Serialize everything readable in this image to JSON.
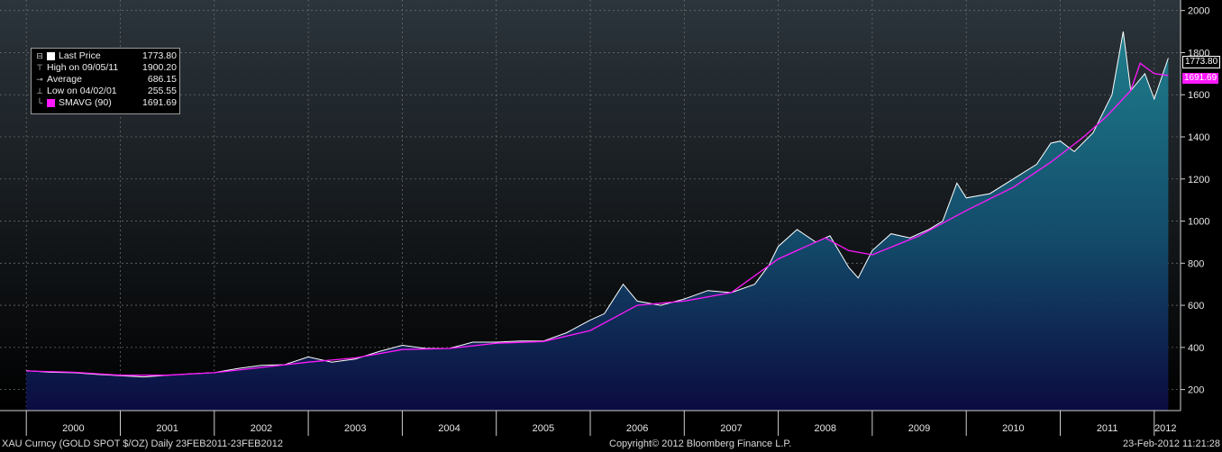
{
  "chart_data": {
    "type": "area",
    "xlabel": "",
    "ylabel": "",
    "ylim": [
      100,
      2050
    ],
    "yticks": [
      200,
      400,
      600,
      800,
      1000,
      1200,
      1400,
      1600,
      1800,
      2000
    ],
    "xticks": [
      "2000",
      "2001",
      "2002",
      "2003",
      "2004",
      "2005",
      "2006",
      "2007",
      "2008",
      "2009",
      "2010",
      "2011",
      "2012"
    ],
    "grid": true,
    "legend_position": "top-left",
    "series": [
      {
        "name": "Last Price",
        "color": "#ffffff",
        "x": [
          2000.0,
          2000.25,
          2000.5,
          2000.75,
          2001.0,
          2001.25,
          2001.5,
          2001.75,
          2002.0,
          2002.25,
          2002.5,
          2002.75,
          2003.0,
          2003.25,
          2003.5,
          2003.75,
          2004.0,
          2004.25,
          2004.5,
          2004.75,
          2005.0,
          2005.25,
          2005.5,
          2005.75,
          2006.0,
          2006.15,
          2006.35,
          2006.5,
          2006.75,
          2007.0,
          2007.25,
          2007.5,
          2007.75,
          2007.9,
          2008.0,
          2008.2,
          2008.4,
          2008.55,
          2008.75,
          2008.85,
          2009.0,
          2009.2,
          2009.4,
          2009.6,
          2009.75,
          2009.9,
          2010.0,
          2010.25,
          2010.5,
          2010.75,
          2010.9,
          2011.0,
          2011.15,
          2011.35,
          2011.55,
          2011.67,
          2011.75,
          2011.9,
          2012.0,
          2012.15
        ],
        "values": [
          290,
          282,
          280,
          272,
          266,
          260,
          268,
          275,
          280,
          300,
          315,
          318,
          355,
          330,
          345,
          380,
          410,
          395,
          395,
          425,
          425,
          430,
          430,
          470,
          530,
          560,
          700,
          620,
          600,
          630,
          670,
          660,
          700,
          790,
          880,
          960,
          900,
          930,
          780,
          730,
          860,
          940,
          920,
          960,
          1000,
          1180,
          1110,
          1130,
          1200,
          1270,
          1370,
          1380,
          1330,
          1420,
          1600,
          1900,
          1620,
          1700,
          1580,
          1774
        ]
      },
      {
        "name": "SMAVG (90)",
        "color": "#ff19ff",
        "x": [
          2000.0,
          2000.5,
          2001.0,
          2001.5,
          2002.0,
          2002.5,
          2003.0,
          2003.5,
          2004.0,
          2004.5,
          2005.0,
          2005.5,
          2006.0,
          2006.5,
          2007.0,
          2007.5,
          2008.0,
          2008.5,
          2008.75,
          2009.0,
          2009.5,
          2010.0,
          2010.5,
          2010.9,
          2011.25,
          2011.5,
          2011.75,
          2011.85,
          2012.0,
          2012.15
        ],
        "values": [
          288,
          282,
          268,
          268,
          280,
          305,
          330,
          350,
          390,
          395,
          420,
          428,
          480,
          600,
          620,
          660,
          820,
          920,
          860,
          840,
          930,
          1050,
          1160,
          1280,
          1400,
          1500,
          1620,
          1750,
          1700,
          1691.69
        ]
      }
    ],
    "legend": [
      {
        "icon": "box-icon",
        "label": "Last Price",
        "value": "1773.80"
      },
      {
        "icon": "high-marker-icon",
        "label": "High on 09/05/11",
        "value": "1900.20"
      },
      {
        "icon": "average-marker-icon",
        "label": "Average",
        "value": "686.15"
      },
      {
        "icon": "low-marker-icon",
        "label": "Low on 04/02/01",
        "value": "255.55"
      },
      {
        "icon": "magenta-swatch",
        "label": "SMAVG (90)",
        "value": "1691.69"
      }
    ],
    "last_tags": {
      "price": "1773.80",
      "smavg": "1691.69"
    }
  },
  "footer": {
    "left": "XAU Curncy (GOLD SPOT  $/OZ) Daily 23FEB2011-23FEB2012",
    "center": "Copyright© 2012 Bloomberg Finance L.P.",
    "right": "23-Feb-2012 11:21:28"
  },
  "colors": {
    "price_line": "#ffffff",
    "sma_line": "#ff19ff",
    "area_top": "#1f7f8c",
    "area_bottom": "#0b0b40"
  }
}
